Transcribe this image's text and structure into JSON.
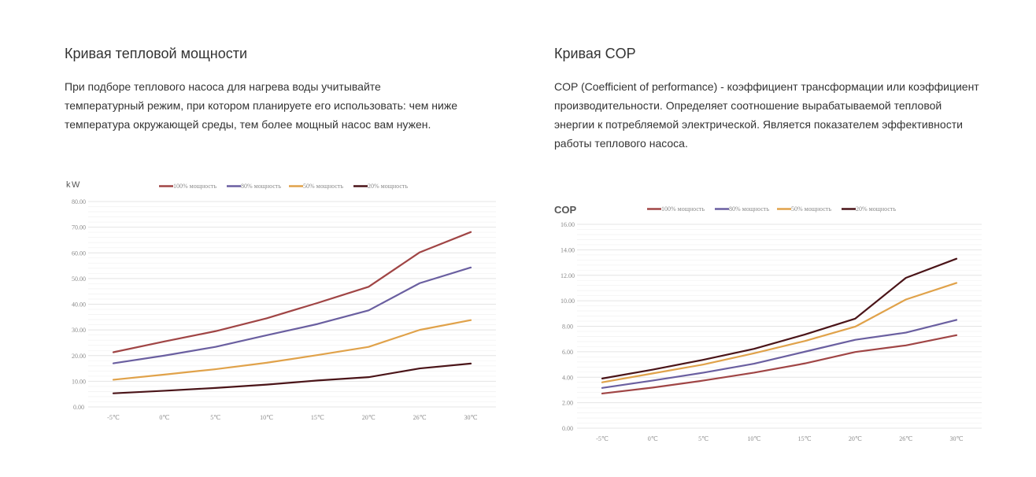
{
  "left": {
    "title": "Кривая тепловой мощности",
    "description": "При подборе теплового насоса для нагрева воды учитывайте температурный режим, при котором планируете его использовать: чем ниже температура окружающей среды, тем более мощный насос вам нужен."
  },
  "right": {
    "title": "Кривая COP",
    "description": "COP (Coefficient of performance) - коэффициент трансформации или коэффициент производительности. Определяет соотношение вырабатываемой тепловой энергии к потребляемой электрической. Является показателем эффективности работы теплового насоса."
  },
  "chart_data": [
    {
      "type": "line",
      "title": "",
      "ylabel": "kW",
      "xlabel": "",
      "categories": [
        "-5℃",
        "0℃",
        "5℃",
        "10℃",
        "15℃",
        "20℃",
        "26℃",
        "30℃"
      ],
      "ylim": [
        0,
        80
      ],
      "yticks": [
        "0.00",
        "10.00",
        "20.00",
        "30.00",
        "40.00",
        "50.00",
        "60.00",
        "70.00",
        "80.00"
      ],
      "grid": true,
      "legend_position": "top",
      "series": [
        {
          "name": "100% мощность",
          "color": "#a04545",
          "values": [
            21.3,
            25.5,
            29.5,
            34.5,
            40.5,
            46.8,
            60.2,
            68.1
          ]
        },
        {
          "name": "80% мощность",
          "color": "#6a5fa0",
          "values": [
            17.0,
            20.0,
            23.4,
            27.9,
            32.3,
            37.6,
            48.2,
            54.3
          ]
        },
        {
          "name": "50% мощность",
          "color": "#e0a24a",
          "values": [
            10.6,
            12.6,
            14.7,
            17.2,
            20.2,
            23.4,
            30.0,
            33.8
          ]
        },
        {
          "name": "20% мощность",
          "color": "#4a1418",
          "values": [
            5.3,
            6.3,
            7.4,
            8.7,
            10.3,
            11.6,
            15.0,
            16.9
          ]
        }
      ]
    },
    {
      "type": "line",
      "title": "",
      "ylabel": "COP",
      "xlabel": "",
      "categories": [
        "-5℃",
        "0℃",
        "5℃",
        "10℃",
        "15℃",
        "20℃",
        "26℃",
        "30℃"
      ],
      "ylim": [
        0,
        16
      ],
      "yticks": [
        "0.00",
        "2.00",
        "4.00",
        "6.00",
        "8.00",
        "10.00",
        "12.00",
        "14.00",
        "16.00"
      ],
      "grid": true,
      "legend_position": "top",
      "series": [
        {
          "name": "100% мощность",
          "color": "#a04545",
          "values": [
            2.72,
            3.19,
            3.74,
            4.36,
            5.08,
            5.98,
            6.5,
            7.3
          ]
        },
        {
          "name": "80% мощность",
          "color": "#6a5fa0",
          "values": [
            3.16,
            3.74,
            4.36,
            5.06,
            6.0,
            6.94,
            7.5,
            8.5
          ]
        },
        {
          "name": "50% мощность",
          "color": "#e0a24a",
          "values": [
            3.6,
            4.3,
            5.0,
            5.88,
            6.84,
            7.97,
            10.1,
            11.4
          ]
        },
        {
          "name": "20% мощность",
          "color": "#4a1418",
          "values": [
            3.9,
            4.6,
            5.37,
            6.23,
            7.35,
            8.6,
            11.8,
            13.3
          ]
        }
      ]
    }
  ]
}
